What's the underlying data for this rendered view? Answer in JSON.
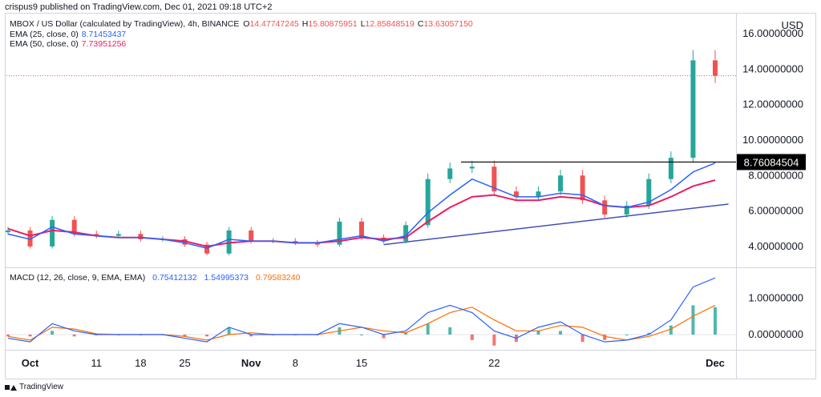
{
  "header": {
    "published": "crispus9 published on TradingView.com, Dec 01, 2021 09:18 UTC+2"
  },
  "price_legend": {
    "title": "MBOX / US Dollar (calculated by TradingView), 4h, BINANCE",
    "ohlc": [
      {
        "label": "O",
        "value": "14.47747245"
      },
      {
        "label": "H",
        "value": "15.80875951"
      },
      {
        "label": "L",
        "value": "12.85848519"
      },
      {
        "label": "C",
        "value": "13.63057150"
      }
    ],
    "ema25": {
      "label": "EMA (25, close, 0)",
      "value": "8.71453437"
    },
    "ema50": {
      "label": "EMA (50, close, 0)",
      "value": "7.73951256"
    }
  },
  "macd_legend": {
    "label": "MACD (12, 26, close, 9, EMA, EMA)",
    "values": [
      "0.75412132",
      "1.54995373",
      "0.79583240"
    ]
  },
  "currency": "USD",
  "price_axis_ticks": [
    "16.00000000",
    "14.00000000",
    "12.00000000",
    "10.00000000",
    "8.00000000",
    "6.00000000",
    "4.00000000"
  ],
  "price_marker": "8.76084504",
  "macd_axis_ticks": [
    "1.00000000",
    "0.00000000"
  ],
  "date_ticks": [
    "Oct",
    "11",
    "18",
    "25",
    "Nov",
    "8",
    "15",
    "22",
    "Dec"
  ],
  "footer": {
    "brand": "TradingView"
  },
  "colors": {
    "up": "#26a69a",
    "down": "#ef5350",
    "ema25": "#2962ff",
    "ema50": "#e91e63",
    "macd": "#2962ff",
    "signal": "#ff6d00",
    "trendline": "#3f51b5",
    "level": "#000000"
  },
  "chart_data": [
    {
      "type": "candlestick",
      "title": "MBOX / US Dollar (calculated by TradingView), 4h, BINANCE",
      "ylim": [
        3,
        17
      ],
      "x": [
        "Sep 26",
        "Oct 1",
        "Oct 5",
        "Oct 8",
        "Oct 11",
        "Oct 14",
        "Oct 18",
        "Oct 21",
        "Oct 25",
        "Oct 28",
        "Oct 30",
        "Nov 1",
        "Nov 4",
        "Nov 8",
        "Nov 11",
        "Nov 13",
        "Nov 15",
        "Nov 16",
        "Nov 17",
        "Nov 18",
        "Nov 19",
        "Nov 20",
        "Nov 21",
        "Nov 22",
        "Nov 23",
        "Nov 24",
        "Nov 25",
        "Nov 26",
        "Nov 27",
        "Nov 28",
        "Nov 29",
        "Nov 30",
        "Dec 1"
      ],
      "series": [
        {
          "name": "EMA (25, close, 0)",
          "values": [
            4.7,
            4.4,
            5.1,
            4.7,
            4.6,
            4.5,
            4.5,
            4.4,
            4.2,
            3.9,
            4.4,
            4.3,
            4.3,
            4.2,
            4.2,
            4.4,
            4.6,
            4.3,
            4.6,
            5.9,
            6.9,
            7.8,
            7.3,
            6.8,
            6.8,
            7.0,
            6.9,
            6.3,
            6.2,
            6.5,
            7.2,
            8.2,
            8.71
          ]
        },
        {
          "name": "EMA (50, close, 0)",
          "values": [
            5.0,
            4.6,
            4.9,
            4.8,
            4.6,
            4.5,
            4.5,
            4.4,
            4.3,
            4.0,
            4.2,
            4.3,
            4.3,
            4.2,
            4.2,
            4.3,
            4.5,
            4.4,
            4.5,
            5.4,
            6.2,
            6.8,
            6.9,
            6.6,
            6.6,
            6.8,
            6.7,
            6.3,
            6.2,
            6.3,
            6.8,
            7.4,
            7.74
          ]
        }
      ],
      "close": [
        4.9,
        4.0,
        5.5,
        4.7,
        4.6,
        4.7,
        4.4,
        4.4,
        4.1,
        3.6,
        4.9,
        4.3,
        4.3,
        4.2,
        4.1,
        5.4,
        4.5,
        4.3,
        5.2,
        7.8,
        8.4,
        8.5,
        7.1,
        6.8,
        7.1,
        8.0,
        6.6,
        5.8,
        6.3,
        7.8,
        9.0,
        14.5,
        13.63
      ],
      "resistance_level": 8.76,
      "trendline": {
        "from": [
          "Nov 16",
          4.1
        ],
        "to": [
          "Dec 1",
          6.3
        ]
      }
    },
    {
      "type": "line",
      "title": "MACD (12, 26, close, 9, EMA, EMA)",
      "ylim": [
        -0.35,
        1.75
      ],
      "x": [
        "Sep 26",
        "Oct 1",
        "Oct 5",
        "Oct 8",
        "Oct 11",
        "Oct 14",
        "Oct 18",
        "Oct 21",
        "Oct 25",
        "Oct 28",
        "Oct 30",
        "Nov 1",
        "Nov 4",
        "Nov 8",
        "Nov 11",
        "Nov 13",
        "Nov 15",
        "Nov 16",
        "Nov 17",
        "Nov 18",
        "Nov 19",
        "Nov 20",
        "Nov 21",
        "Nov 22",
        "Nov 23",
        "Nov 24",
        "Nov 25",
        "Nov 26",
        "Nov 27",
        "Nov 28",
        "Nov 29",
        "Nov 30",
        "Dec 1"
      ],
      "series": [
        {
          "name": "MACD",
          "values": [
            -0.1,
            -0.2,
            0.3,
            0.1,
            0.0,
            0.0,
            0.0,
            0.0,
            -0.1,
            -0.2,
            0.2,
            0.0,
            0.0,
            0.0,
            0.0,
            0.3,
            0.2,
            0.0,
            0.1,
            0.6,
            0.8,
            0.6,
            0.1,
            -0.1,
            0.2,
            0.35,
            0.0,
            -0.2,
            -0.15,
            0.0,
            0.4,
            1.3,
            1.55
          ]
        },
        {
          "name": "Signal",
          "values": [
            -0.05,
            -0.15,
            0.2,
            0.15,
            0.02,
            0.0,
            0.0,
            0.0,
            -0.05,
            -0.15,
            0.0,
            0.05,
            0.0,
            0.0,
            0.0,
            0.1,
            0.2,
            0.1,
            0.05,
            0.3,
            0.6,
            0.75,
            0.4,
            0.1,
            0.1,
            0.25,
            0.2,
            -0.05,
            -0.15,
            -0.05,
            0.15,
            0.5,
            0.8
          ]
        }
      ],
      "histogram": [
        -0.05,
        -0.05,
        0.1,
        -0.05,
        -0.02,
        0.0,
        0.0,
        0.0,
        -0.05,
        -0.05,
        0.2,
        -0.05,
        0.0,
        0.0,
        0.0,
        0.2,
        0.0,
        -0.1,
        0.05,
        0.3,
        0.2,
        -0.15,
        -0.3,
        -0.2,
        0.1,
        0.1,
        -0.2,
        -0.15,
        0.0,
        0.05,
        0.25,
        0.8,
        0.75
      ]
    }
  ]
}
